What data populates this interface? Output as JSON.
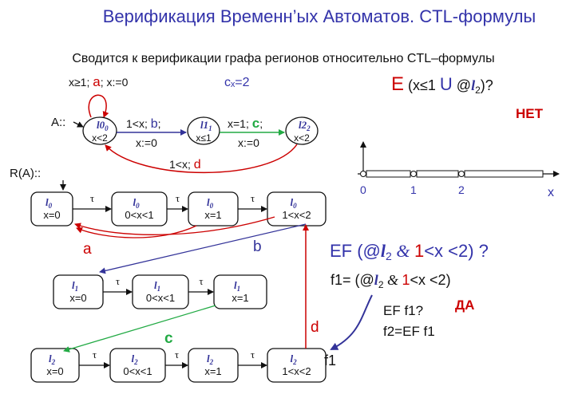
{
  "title": "Верификация Временн’ых Автоматов. CTL-формулы",
  "subtitle": "Сводится к верификации графа регионов относительно CTL–формулы",
  "colors": {
    "title": "#3333aa",
    "red": "#cc0000",
    "blue": "#333399",
    "green": "#22aa44",
    "dark": "#111111"
  },
  "automaton": {
    "label": "A::",
    "loop": {
      "guard": "x≥1; ",
      "action": "a",
      "reset": "; x:=0"
    },
    "clock_value": "cₓ=2",
    "locations": [
      {
        "name": "l0",
        "sub": "0",
        "inv": "x<2"
      },
      {
        "name": "l1",
        "sub": "1",
        "inv": "x≤1"
      },
      {
        "name": "l2",
        "sub": "2",
        "inv": "x<2"
      }
    ],
    "edge_b": {
      "guard": "1<x; ",
      "action": "b",
      "semi": ";",
      "reset": "x:=0"
    },
    "edge_c": {
      "guard": "x=1; ",
      "action": "c",
      "semi": ";",
      "reset": "x:=0"
    },
    "edge_d": {
      "guard": "1<x; ",
      "action": "d"
    }
  },
  "query1": {
    "E": "E",
    "open": " (x≤1 ",
    "U": "U",
    "at": " @",
    "l": "l",
    "sub": "2",
    "close": ")?",
    "answer": "НЕТ"
  },
  "axis": {
    "ticks": [
      "0",
      "1",
      "2"
    ],
    "xlabel": "x"
  },
  "region_graph": {
    "label": "R(A)::",
    "tau": "τ",
    "rows": [
      {
        "loc": "l",
        "sub": "0",
        "regions": [
          "x=0",
          "0<x<1",
          "x=1",
          "1<x<2"
        ]
      },
      {
        "loc": "l",
        "sub": "1",
        "regions": [
          "x=0",
          "0<x<1",
          "x=1"
        ]
      },
      {
        "loc": "l",
        "sub": "2",
        "regions": [
          "x=0",
          "0<x<1",
          "x=1",
          "1<x<2"
        ]
      }
    ],
    "edge_labels": {
      "a": "a",
      "b": "b",
      "c": "c",
      "d": "d"
    },
    "f1_tag": "f1"
  },
  "query2": {
    "prefix": "EF (@",
    "l": "l",
    "sub": "2",
    "amp": " & ",
    "one": "1",
    "rest": "<x <2) ?",
    "f1_prefix": "f1= (@",
    "f1_rest": "<x <2)",
    "ef": "EF f1?",
    "answer": "ДА",
    "f2": "f2=EF f1"
  }
}
